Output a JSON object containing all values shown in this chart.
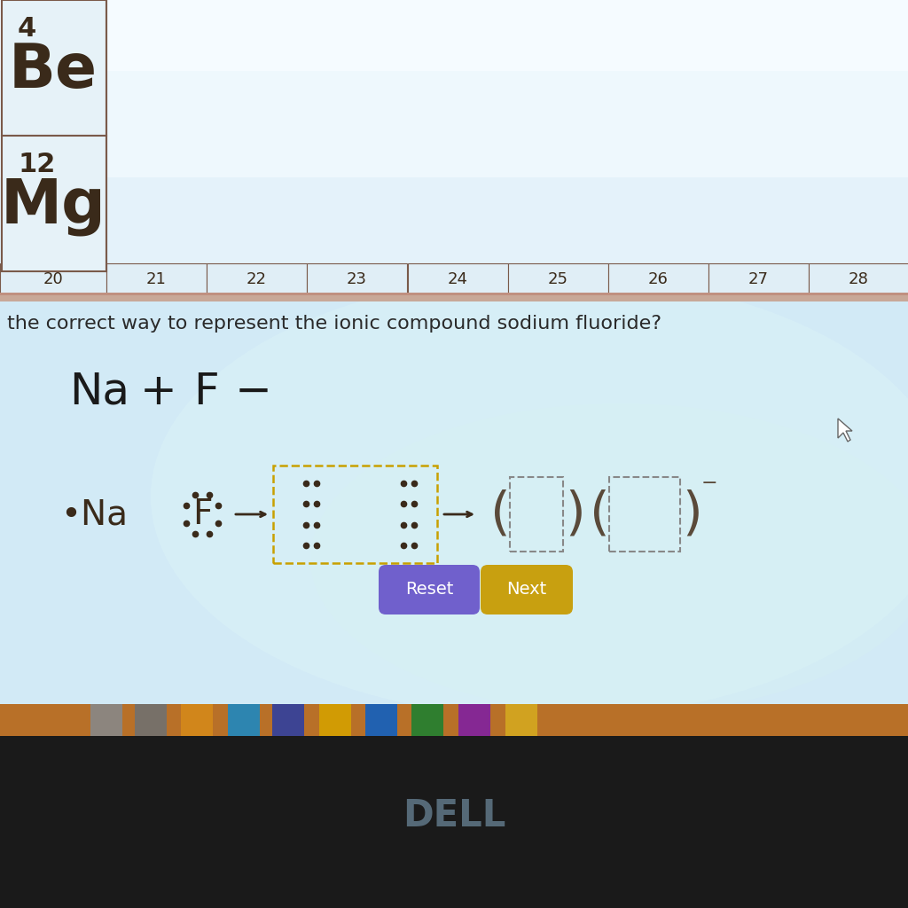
{
  "periodic_table_border": "#7a5a4a",
  "be_number": "4",
  "be_symbol": "Be",
  "mg_number": "12",
  "mg_symbol": "Mg",
  "row_numbers_bottom": [
    "20",
    "21",
    "22",
    "23",
    "24",
    "25",
    "26",
    "27",
    "28"
  ],
  "question_text": "the correct way to represent the ionic compound sodium fluoride?",
  "question_color": "#2a2a2a",
  "header_color": "#1a1a1a",
  "reset_btn_color": "#7060cc",
  "next_btn_color": "#c8a010",
  "btn_text_color": "#ffffff",
  "separator_color": "#c8a898",
  "dashed_box_color": "#c8a000",
  "bracket_color": "#5a4a3a",
  "dot_color": "#3a2a1a",
  "text_color": "#3a2a1a",
  "screen_bg": "#d8eef8",
  "upper_bg": "#e8f6fc",
  "taskbar_color": "#b87028",
  "bezel_color": "#1a1a1a",
  "dell_color": "#607888"
}
